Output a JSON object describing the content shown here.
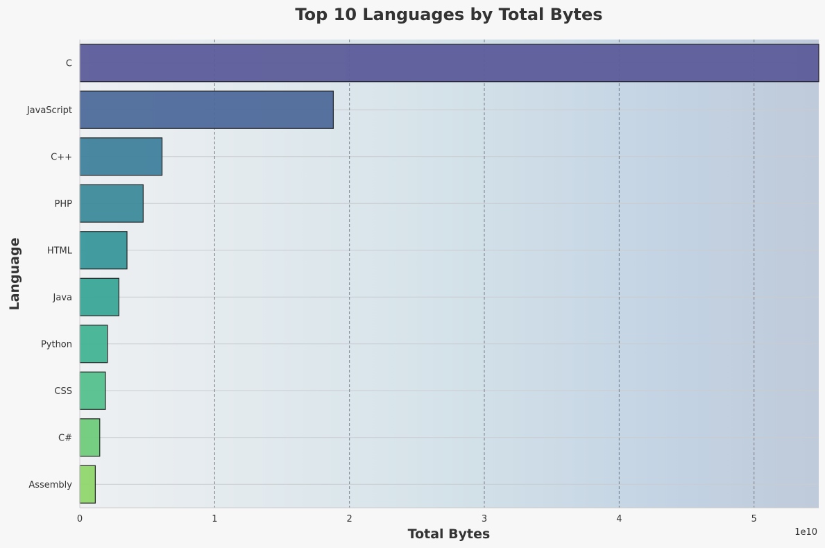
{
  "chart_data": {
    "type": "bar",
    "orientation": "horizontal",
    "title": "Top 10 Languages by Total Bytes",
    "xlabel": "Total Bytes",
    "ylabel": "Language",
    "x_offset_label": "1e10",
    "x_scale": 10000000000,
    "xlim": [
      0,
      5.48
    ],
    "xticks": [
      0,
      1,
      2,
      3,
      4,
      5
    ],
    "grid": "x dashed",
    "categories": [
      "C",
      "JavaScript",
      "C++",
      "PHP",
      "HTML",
      "Java",
      "Python",
      "CSS",
      "C#",
      "Assembly"
    ],
    "values": [
      5.48,
      1.88,
      0.61,
      0.47,
      0.35,
      0.29,
      0.205,
      0.19,
      0.148,
      0.115
    ],
    "colors": [
      "#5c5c9a",
      "#4e6a9a",
      "#40819c",
      "#3d8a9a",
      "#39979a",
      "#3aa597",
      "#43b394",
      "#55c08c",
      "#70cb7c",
      "#90d66c"
    ]
  }
}
